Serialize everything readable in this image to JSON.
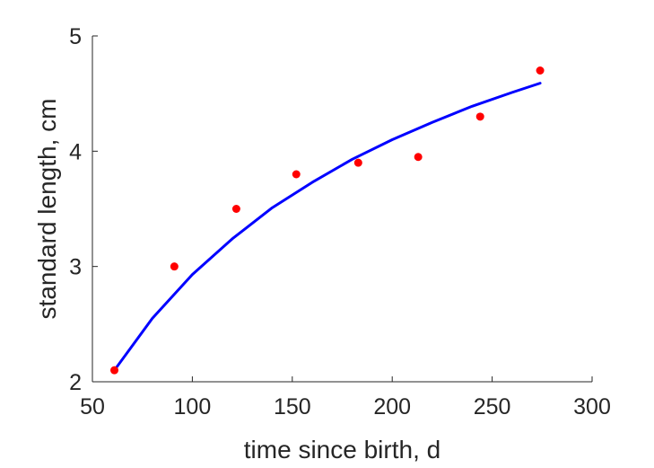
{
  "chart_data": {
    "type": "scatter",
    "title": "",
    "xlabel": "time since birth, d",
    "ylabel": "standard length, cm",
    "xlim": [
      50,
      300
    ],
    "ylim": [
      2,
      5
    ],
    "xticks": [
      50,
      100,
      150,
      200,
      250,
      300
    ],
    "yticks": [
      2,
      3,
      4,
      5
    ],
    "grid": false,
    "legend": "none",
    "series": [
      {
        "kind": "scatter",
        "color": "#ff0000",
        "x": [
          61,
          91,
          122,
          152,
          183,
          213,
          244,
          274
        ],
        "y": [
          2.1,
          3.0,
          3.5,
          3.8,
          3.9,
          3.95,
          4.3,
          4.7
        ]
      },
      {
        "kind": "line",
        "color": "#0000ff",
        "x": [
          61,
          80,
          100,
          120,
          140,
          160,
          180,
          200,
          220,
          240,
          260,
          274
        ],
        "y": [
          2.1,
          2.55,
          2.93,
          3.24,
          3.51,
          3.73,
          3.93,
          4.1,
          4.25,
          4.39,
          4.51,
          4.59
        ]
      }
    ]
  }
}
